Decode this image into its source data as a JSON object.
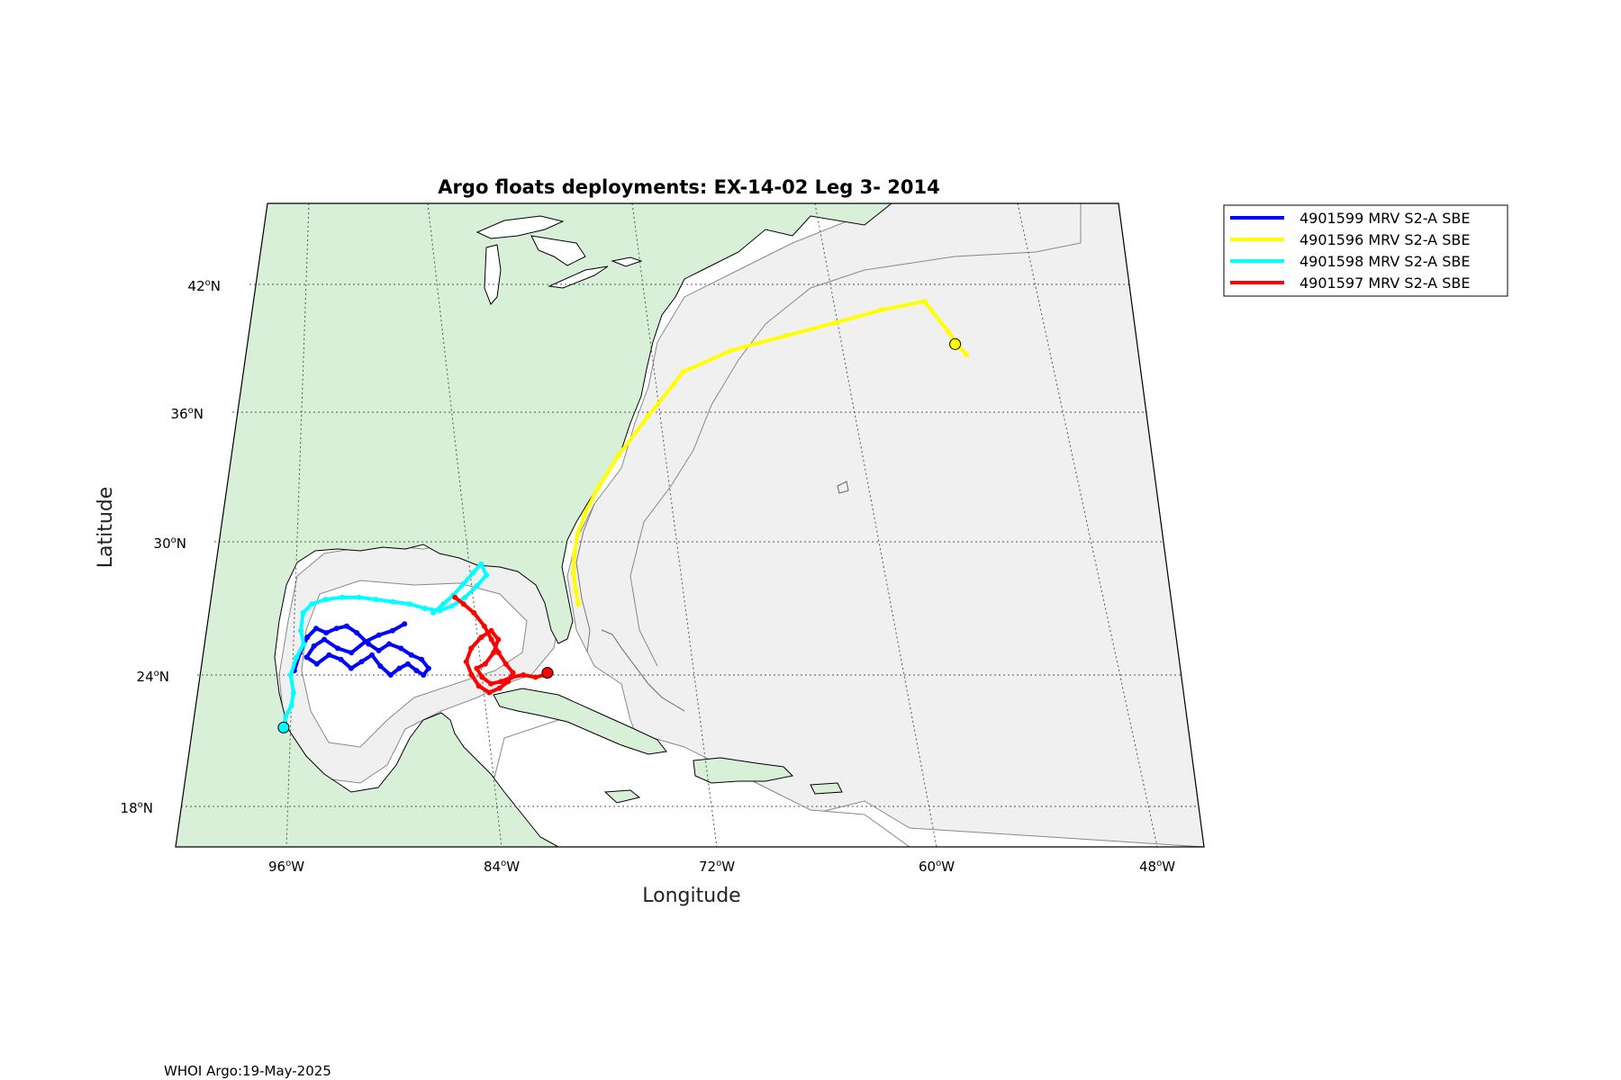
{
  "chart_data": {
    "type": "map",
    "title": "Argo floats deployments: EX-14-02 Leg 3- 2014",
    "xlabel": "Longitude",
    "ylabel": "Latitude",
    "lon_range": [
      -100,
      -44
    ],
    "lat_range": [
      16,
      46
    ],
    "lat_ticks": [
      {
        "value": 18,
        "deg": "18",
        "hem": "N"
      },
      {
        "value": 24,
        "deg": "24",
        "hem": "N"
      },
      {
        "value": 30,
        "deg": "30",
        "hem": "N"
      },
      {
        "value": 36,
        "deg": "36",
        "hem": "N"
      },
      {
        "value": 42,
        "deg": "42",
        "hem": "N"
      }
    ],
    "lon_ticks": [
      {
        "value": -96,
        "deg": "96",
        "hem": "W"
      },
      {
        "value": -84,
        "deg": "84",
        "hem": "W"
      },
      {
        "value": -72,
        "deg": "72",
        "hem": "W"
      },
      {
        "value": -60,
        "deg": "60",
        "hem": "W"
      },
      {
        "value": -48,
        "deg": "48",
        "hem": "W"
      }
    ],
    "grid": true,
    "legend_position": "outside-top-right",
    "colors": {
      "land": "#d8f0d8",
      "shelf": "#f0f0f0",
      "ocean": "#ffffff",
      "contour": "#777777",
      "grid": "#555555"
    },
    "series": [
      {
        "name": "4901599 MRV S2-A SBE",
        "color": "#0000ff",
        "points": [
          [
            -89.5,
            26.3
          ],
          [
            -90.2,
            26.0
          ],
          [
            -91.0,
            25.8
          ],
          [
            -91.8,
            25.5
          ],
          [
            -92.6,
            25.0
          ],
          [
            -93.4,
            25.2
          ],
          [
            -94.2,
            25.6
          ],
          [
            -94.8,
            25.3
          ],
          [
            -95.2,
            24.8
          ],
          [
            -94.6,
            24.5
          ],
          [
            -93.9,
            24.9
          ],
          [
            -93.2,
            24.7
          ],
          [
            -92.6,
            24.3
          ],
          [
            -92.0,
            24.6
          ],
          [
            -91.4,
            24.9
          ],
          [
            -90.9,
            24.4
          ],
          [
            -90.3,
            24.0
          ],
          [
            -89.8,
            24.3
          ],
          [
            -89.3,
            24.5
          ],
          [
            -88.8,
            24.2
          ],
          [
            -88.4,
            24.0
          ],
          [
            -88.1,
            24.3
          ],
          [
            -88.5,
            24.7
          ],
          [
            -89.1,
            24.9
          ],
          [
            -89.7,
            25.2
          ],
          [
            -90.4,
            25.4
          ],
          [
            -91.0,
            25.1
          ],
          [
            -91.6,
            25.4
          ],
          [
            -92.3,
            25.9
          ],
          [
            -92.9,
            26.2
          ],
          [
            -93.5,
            26.1
          ],
          [
            -94.1,
            25.9
          ],
          [
            -94.7,
            26.1
          ],
          [
            -95.2,
            25.7
          ],
          [
            -95.6,
            25.0
          ],
          [
            -95.9,
            24.2
          ]
        ]
      },
      {
        "name": "4901596 MRV S2-A SBE",
        "color": "#ffff00",
        "points": [
          [
            -79.2,
            27.2
          ],
          [
            -79.3,
            27.8
          ],
          [
            -79.4,
            28.6
          ],
          [
            -79.3,
            29.4
          ],
          [
            -79.0,
            30.4
          ],
          [
            -78.5,
            31.3
          ],
          [
            -77.6,
            32.5
          ],
          [
            -76.2,
            34.0
          ],
          [
            -74.2,
            35.8
          ],
          [
            -72.4,
            37.3
          ],
          [
            -71.7,
            37.9
          ],
          [
            -68.5,
            38.9
          ],
          [
            -64.8,
            39.6
          ],
          [
            -61.5,
            40.2
          ],
          [
            -58.4,
            40.8
          ],
          [
            -55.5,
            41.2
          ],
          [
            -54.3,
            39.8
          ],
          [
            -53.8,
            39.1
          ],
          [
            -53.4,
            38.7
          ]
        ]
      },
      {
        "name": "4901598 MRV S2-A SBE",
        "color": "#00ffff",
        "points": [
          [
            -87.8,
            26.8
          ],
          [
            -87.2,
            27.2
          ],
          [
            -86.6,
            27.6
          ],
          [
            -86.0,
            28.1
          ],
          [
            -85.4,
            28.6
          ],
          [
            -84.9,
            29.0
          ],
          [
            -84.6,
            28.5
          ],
          [
            -85.2,
            28.0
          ],
          [
            -85.9,
            27.5
          ],
          [
            -86.7,
            27.1
          ],
          [
            -87.4,
            26.9
          ],
          [
            -88.3,
            27.0
          ],
          [
            -89.2,
            27.2
          ],
          [
            -90.2,
            27.3
          ],
          [
            -91.2,
            27.4
          ],
          [
            -92.2,
            27.5
          ],
          [
            -93.2,
            27.5
          ],
          [
            -94.2,
            27.4
          ],
          [
            -95.0,
            27.2
          ],
          [
            -95.5,
            26.8
          ],
          [
            -95.6,
            26.0
          ],
          [
            -95.4,
            25.4
          ],
          [
            -95.8,
            24.8
          ],
          [
            -96.1,
            24.0
          ],
          [
            -95.9,
            23.2
          ],
          [
            -96.0,
            22.6
          ],
          [
            -96.3,
            22.1
          ],
          [
            -96.4,
            21.6
          ]
        ]
      },
      {
        "name": "4901597 MRV S2-A SBE",
        "color": "#ff0000",
        "points": [
          [
            -86.5,
            27.5
          ],
          [
            -86.0,
            27.2
          ],
          [
            -85.4,
            26.8
          ],
          [
            -84.8,
            26.2
          ],
          [
            -84.4,
            25.6
          ],
          [
            -84.0,
            25.0
          ],
          [
            -83.6,
            24.5
          ],
          [
            -83.2,
            24.1
          ],
          [
            -83.5,
            23.7
          ],
          [
            -84.0,
            23.4
          ],
          [
            -84.6,
            23.2
          ],
          [
            -85.2,
            23.5
          ],
          [
            -85.6,
            24.0
          ],
          [
            -85.9,
            24.6
          ],
          [
            -85.6,
            25.2
          ],
          [
            -85.0,
            25.7
          ],
          [
            -84.4,
            26.0
          ],
          [
            -84.0,
            25.6
          ],
          [
            -84.3,
            25.0
          ],
          [
            -84.8,
            24.5
          ],
          [
            -85.3,
            24.3
          ],
          [
            -85.0,
            23.9
          ],
          [
            -84.5,
            23.6
          ],
          [
            -83.9,
            23.7
          ],
          [
            -83.3,
            23.9
          ],
          [
            -82.6,
            24.0
          ],
          [
            -81.9,
            23.9
          ],
          [
            -81.4,
            24.0
          ],
          [
            -81.0,
            24.1
          ]
        ]
      }
    ],
    "markers": [
      {
        "label": "4901596 MRV S2-A SBE",
        "lon": -54.0,
        "lat": 39.2
      },
      {
        "label": "4901598 MRV S2-A SBE",
        "lon": -96.4,
        "lat": 21.6
      },
      {
        "label": "4901597 MRV S2-A SBE",
        "lon": -81.2,
        "lat": 24.1
      }
    ]
  },
  "footer_text": "WHOI Argo:19-May-2025"
}
